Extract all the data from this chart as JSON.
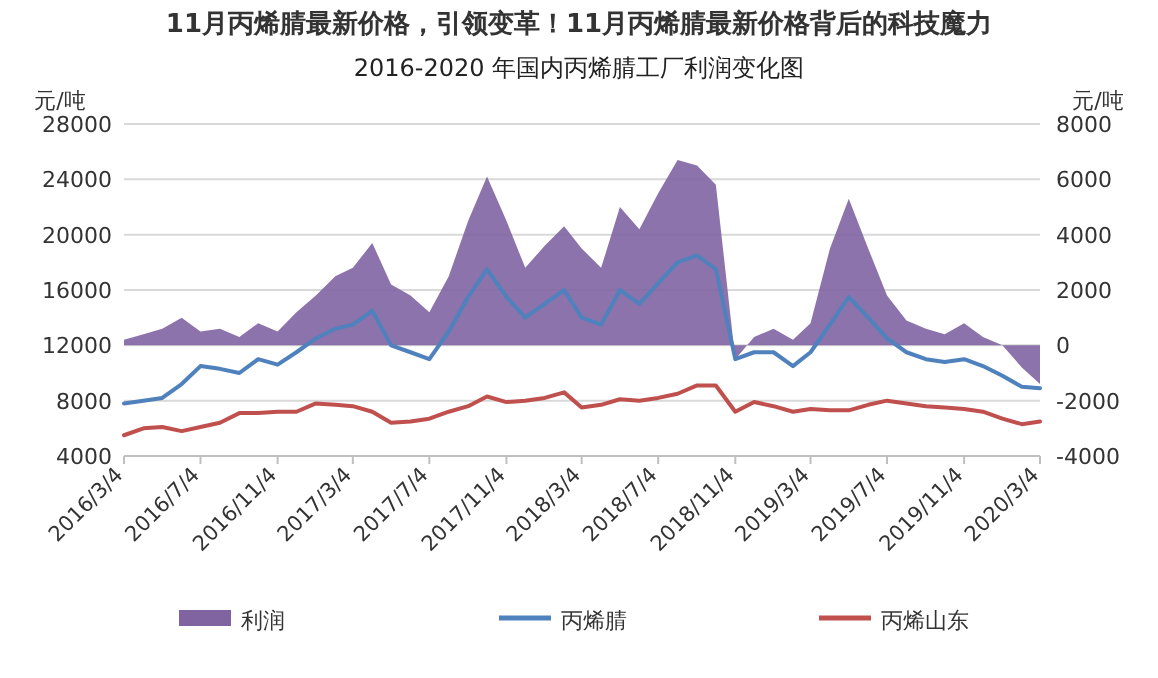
{
  "chart_data": {
    "type": "line",
    "title": "2016-2020 年国内丙烯腈工厂利润变化图",
    "annotations": [
      "11月丙烯腈最新价格，引领变革！11月丙烯腈最新价格背后的科技魔力"
    ],
    "ylabel": "元/吨",
    "y2label": "元/吨",
    "x": [
      "2016-03-04",
      "2016-04-04",
      "2016-05-04",
      "2016-06-04",
      "2016-07-04",
      "2016-08-04",
      "2016-09-04",
      "2016-10-04",
      "2016-11-04",
      "2016-12-04",
      "2017-01-04",
      "2017-02-04",
      "2017-03-04",
      "2017-04-04",
      "2017-05-04",
      "2017-06-04",
      "2017-07-04",
      "2017-08-04",
      "2017-09-04",
      "2017-10-04",
      "2017-11-04",
      "2017-12-04",
      "2018-01-04",
      "2018-02-04",
      "2018-03-04",
      "2018-04-04",
      "2018-05-04",
      "2018-06-04",
      "2018-07-04",
      "2018-08-04",
      "2018-09-04",
      "2018-10-04",
      "2018-11-04",
      "2018-12-04",
      "2019-01-04",
      "2019-02-04",
      "2019-03-04",
      "2019-04-04",
      "2019-05-04",
      "2019-06-04",
      "2019-07-04",
      "2019-08-04",
      "2019-09-04",
      "2019-10-04",
      "2019-11-04",
      "2019-12-04",
      "2020-01-04",
      "2020-02-04",
      "2020-03-04"
    ],
    "series": [
      {
        "name": "利润",
        "type": "area",
        "axis": "y2",
        "color": "#8064a2",
        "values": [
          200,
          400,
          600,
          1000,
          500,
          600,
          300,
          800,
          500,
          1200,
          1800,
          2500,
          2800,
          3700,
          2200,
          1800,
          1200,
          2500,
          4500,
          6100,
          4500,
          2800,
          3600,
          4300,
          3500,
          2800,
          5000,
          4200,
          5500,
          6700,
          6500,
          5800,
          -500,
          300,
          600,
          200,
          800,
          3500,
          5300,
          3500,
          1800,
          900,
          600,
          400,
          800,
          300,
          0,
          -800,
          -1400
        ]
      },
      {
        "name": "丙烯腈",
        "color": "#4f81bd",
        "values": [
          7800,
          8000,
          8200,
          9200,
          10500,
          10300,
          10000,
          11000,
          10600,
          11500,
          12500,
          13200,
          13500,
          14500,
          12000,
          11500,
          11000,
          13000,
          15500,
          17500,
          15500,
          14000,
          15000,
          16000,
          14000,
          13500,
          16000,
          15000,
          16500,
          18000,
          18500,
          17500,
          11000,
          11500,
          11500,
          10500,
          11500,
          13500,
          15500,
          14000,
          12500,
          11500,
          11000,
          10800,
          11000,
          10500,
          9800,
          9000,
          8900
        ]
      },
      {
        "name": "丙烯山东",
        "color": "#c0504d",
        "values": [
          5500,
          6000,
          6100,
          5800,
          6100,
          6400,
          7100,
          7100,
          7200,
          7200,
          7800,
          7700,
          7600,
          7200,
          6400,
          6500,
          6700,
          7200,
          7600,
          8300,
          7900,
          8000,
          8200,
          8600,
          7500,
          7700,
          8100,
          8000,
          8200,
          8500,
          9100,
          9100,
          7200,
          7900,
          7600,
          7200,
          7400,
          7300,
          7300,
          7700,
          8000,
          7800,
          7600,
          7500,
          7400,
          7200,
          6700,
          6300,
          6500
        ]
      }
    ],
    "xlim": [
      "2016-03-04",
      "2020-03-04"
    ],
    "xticks": [
      {
        "value": "2016-03-04",
        "label": "2016/3/4"
      },
      {
        "value": "2016-07-04",
        "label": "2016/7/4"
      },
      {
        "value": "2016-11-04",
        "label": "2016/11/4"
      },
      {
        "value": "2017-03-04",
        "label": "2017/3/4"
      },
      {
        "value": "2017-07-04",
        "label": "2017/7/4"
      },
      {
        "value": "2017-11-04",
        "label": "2017/11/4"
      },
      {
        "value": "2018-03-04",
        "label": "2018/3/4"
      },
      {
        "value": "2018-07-04",
        "label": "2018/7/4"
      },
      {
        "value": "2018-11-04",
        "label": "2018/11/4"
      },
      {
        "value": "2019-03-04",
        "label": "2019/3/4"
      },
      {
        "value": "2019-07-04",
        "label": "2019/7/4"
      },
      {
        "value": "2019-11-04",
        "label": "2019/11/4"
      },
      {
        "value": "2020-03-04",
        "label": "2020/3/4"
      }
    ],
    "ylim": [
      4000,
      28000
    ],
    "yticks": [
      4000,
      8000,
      12000,
      16000,
      20000,
      24000,
      28000
    ],
    "y2lim": [
      -4000,
      8000
    ],
    "y2ticks": [
      -4000,
      -2000,
      0,
      2000,
      4000,
      6000,
      8000
    ],
    "grid": "y",
    "legend": "bottom"
  }
}
